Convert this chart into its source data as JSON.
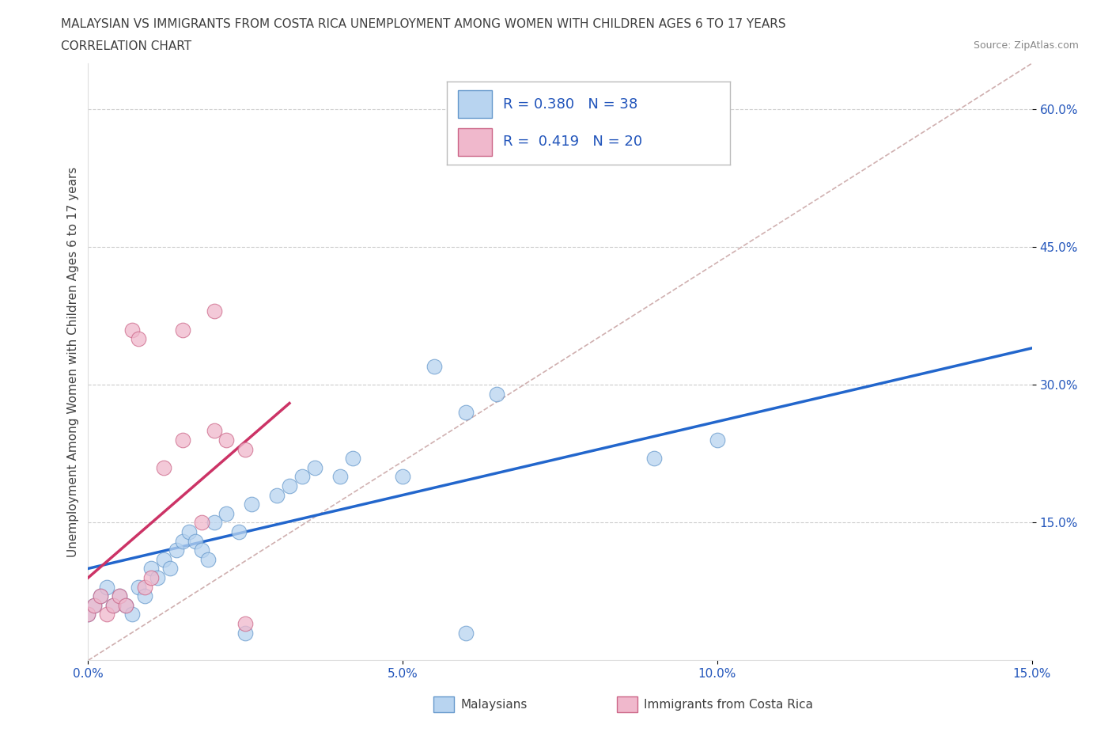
{
  "title_line1": "MALAYSIAN VS IMMIGRANTS FROM COSTA RICA UNEMPLOYMENT AMONG WOMEN WITH CHILDREN AGES 6 TO 17 YEARS",
  "title_line2": "CORRELATION CHART",
  "source": "Source: ZipAtlas.com",
  "ylabel": "Unemployment Among Women with Children Ages 6 to 17 years",
  "xlim": [
    0.0,
    0.15
  ],
  "ylim": [
    0.0,
    0.65
  ],
  "xticks": [
    0.0,
    0.05,
    0.1,
    0.15
  ],
  "xtick_labels": [
    "0.0%",
    "5.0%",
    "10.0%",
    "15.0%"
  ],
  "yticks": [
    0.15,
    0.3,
    0.45,
    0.6
  ],
  "ytick_labels": [
    "15.0%",
    "30.0%",
    "45.0%",
    "60.0%"
  ],
  "blue_scatter_x": [
    0.0,
    0.001,
    0.002,
    0.003,
    0.004,
    0.005,
    0.006,
    0.007,
    0.008,
    0.009,
    0.01,
    0.011,
    0.012,
    0.013,
    0.014,
    0.015,
    0.016,
    0.017,
    0.018,
    0.019,
    0.02,
    0.022,
    0.024,
    0.026,
    0.03,
    0.032,
    0.034,
    0.036,
    0.04,
    0.042,
    0.05,
    0.055,
    0.06,
    0.065,
    0.09,
    0.1,
    0.06,
    0.025
  ],
  "blue_scatter_y": [
    0.05,
    0.06,
    0.07,
    0.08,
    0.06,
    0.07,
    0.06,
    0.05,
    0.08,
    0.07,
    0.1,
    0.09,
    0.11,
    0.1,
    0.12,
    0.13,
    0.14,
    0.13,
    0.12,
    0.11,
    0.15,
    0.16,
    0.14,
    0.17,
    0.18,
    0.19,
    0.2,
    0.21,
    0.2,
    0.22,
    0.2,
    0.32,
    0.27,
    0.29,
    0.22,
    0.24,
    0.03,
    0.03
  ],
  "pink_scatter_x": [
    0.0,
    0.001,
    0.002,
    0.003,
    0.004,
    0.005,
    0.006,
    0.007,
    0.008,
    0.009,
    0.01,
    0.012,
    0.015,
    0.018,
    0.02,
    0.022,
    0.025,
    0.02,
    0.015,
    0.025
  ],
  "pink_scatter_y": [
    0.05,
    0.06,
    0.07,
    0.05,
    0.06,
    0.07,
    0.06,
    0.36,
    0.35,
    0.08,
    0.09,
    0.21,
    0.24,
    0.15,
    0.25,
    0.24,
    0.23,
    0.38,
    0.36,
    0.04
  ],
  "blue_line_x": [
    0.0,
    0.15
  ],
  "blue_line_y": [
    0.1,
    0.34
  ],
  "pink_line_x": [
    0.0,
    0.032
  ],
  "pink_line_y": [
    0.09,
    0.28
  ],
  "diag_color": "#d0b0b0",
  "background_color": "#ffffff",
  "grid_color": "#cccccc",
  "title_color": "#404040",
  "scatter_blue": "#b8d4f0",
  "scatter_blue_edge": "#6699cc",
  "scatter_pink": "#f0b8cc",
  "scatter_pink_edge": "#cc6688",
  "trend_blue": "#2266cc",
  "trend_pink": "#cc3366",
  "legend_blue_R": "0.380",
  "legend_blue_N": "38",
  "legend_pink_R": "0.419",
  "legend_pink_N": "20",
  "legend_label_blue": "Malaysians",
  "legend_label_pink": "Immigrants from Costa Rica"
}
